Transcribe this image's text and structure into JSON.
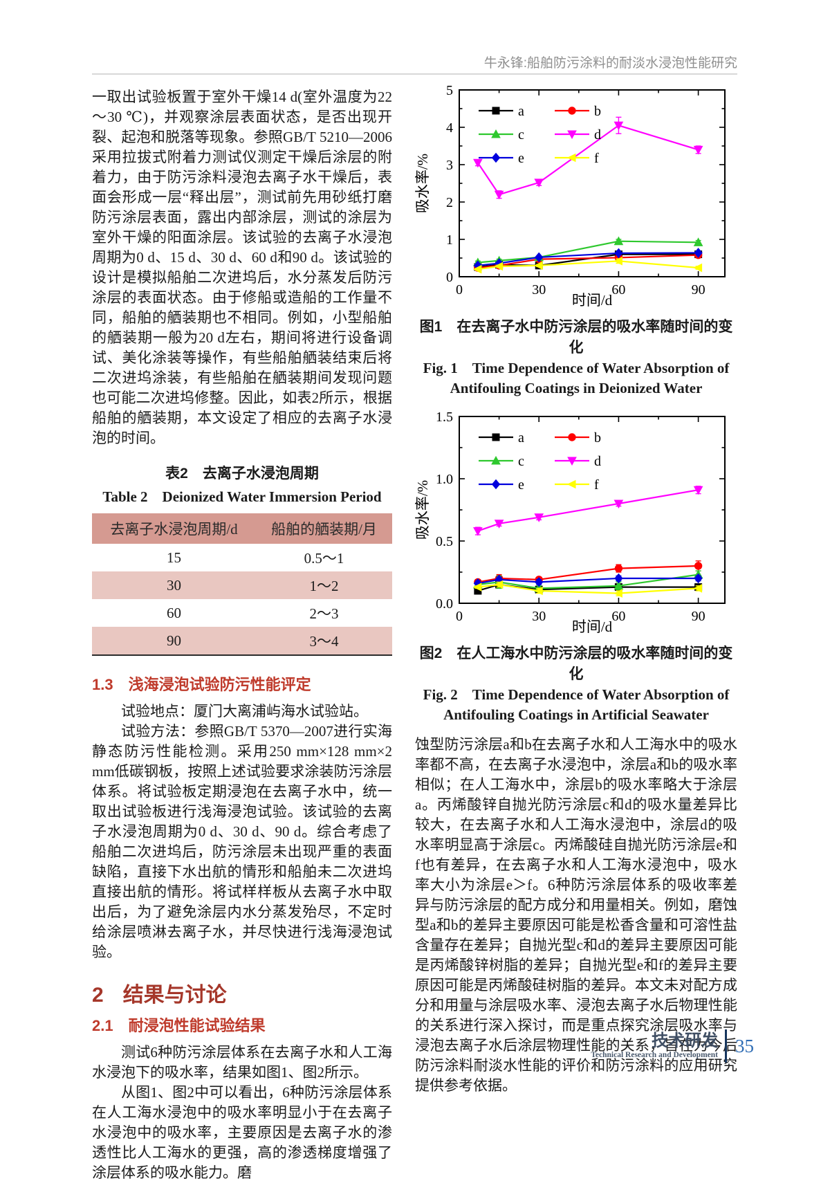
{
  "header": {
    "running_title": "牛永锋:船舶防污涂料的耐淡水浸泡性能研究"
  },
  "theme": {
    "heading_red": "#bf3a2b",
    "section_red": "#a5372a",
    "table_header_bg": "#d59a91",
    "table_alt_row_bg": "#e9c7c1",
    "footer_blue": "#2f6db5",
    "footer_slate": "#3f4e63"
  },
  "left_column": {
    "para1": "一取出试验板置于室外干燥14 d(室外温度为22～30 ℃)，并观察涂层表面状态，是否出现开裂、起泡和脱落等现象。参照GB/T 5210—2006采用拉拔式附着力测试仪测定干燥后涂层的附着力，由于防污涂料浸泡去离子水干燥后，表面会形成一层“释出层”，测试前先用砂纸打磨防污涂层表面，露出内部涂层，测试的涂层为室外干燥的阳面涂层。该试验的去离子水浸泡周期为0 d、15 d、30 d、60 d和90 d。该试验的设计是模拟船舶二次进坞后，水分蒸发后防污涂层的表面状态。由于修船或造船的工作量不同，船舶的舾装期也不相同。例如，小型船舶的舾装期一般为20 d左右，期间将进行设备调试、美化涂装等操作，有些船舶舾装结束后将二次进坞涂装，有些船舶在舾装期间发现问题也可能二次进坞修整。因此，如表2所示，根据船舶的舾装期，本文设定了相应的去离子水浸泡的时间。",
    "table": {
      "caption_cn": "表2　去离子水浸泡周期",
      "caption_en": "Table 2　Deionized Water Immersion Period",
      "headers": [
        "去离子水浸泡周期/d",
        "船舶的舾装期/月"
      ],
      "rows": [
        [
          "15",
          "0.5～1"
        ],
        [
          "30",
          "1～2"
        ],
        [
          "60",
          "2～3"
        ],
        [
          "90",
          "3～4"
        ]
      ]
    },
    "section_1_3": {
      "number": "1.3",
      "title": "浅海浸泡试验防污性能评定"
    },
    "para2": "试验地点：厦门大离浦屿海水试验站。",
    "para3": "试验方法：参照GB/T 5370—2007进行实海静态防污性能检测。采用250 mm×128 mm×2 mm低碳钢板，按照上述试验要求涂装防污涂层体系。将试验板定期浸泡在去离子水中，统一取出试验板进行浅海浸泡试验。该试验的去离子水浸泡周期为0 d、30 d、90 d。综合考虑了船舶二次进坞后，防污涂层未出现严重的表面缺陷，直接下水出航的情形和船舶未二次进坞直接出航的情形。将试样样板从去离子水中取出后，为了避免涂层内水分蒸发殆尽，不定时给涂层喷淋去离子水，并尽快进行浅海浸泡试验。",
    "section_2": {
      "number": "2",
      "title": "结果与讨论"
    },
    "section_2_1": {
      "number": "2.1",
      "title": "耐浸泡性能试验结果"
    },
    "para4": "测试6种防污涂层体系在去离子水和人工海水浸泡下的吸水率，结果如图1、图2所示。",
    "para5": "从图1、图2中可以看出，6种防污涂层体系在人工海水浸泡中的吸水率明显小于在去离子水浸泡中的吸水率，主要原因是去离子水的渗透性比人工海水的更强，高的渗透梯度增强了涂层体系的吸水能力。磨"
  },
  "right_column": {
    "fig1": {
      "caption_cn": "图1　在去离子水中防污涂层的吸水率随时间的变化",
      "caption_en_line1": "Fig. 1　Time Dependence of Water Absorption of",
      "caption_en_line2": "Antifouling Coatings in Deionized Water"
    },
    "fig2": {
      "caption_cn": "图2　在人工海水中防污涂层的吸水率随时间的变化",
      "caption_en_line1": "Fig. 2　Time Dependence of Water Absorption of",
      "caption_en_line2": "Antifouling Coatings in Artificial Seawater"
    },
    "para1": "蚀型防污涂层a和b在去离子水和人工海水中的吸水率都不高，在去离子水浸泡中，涂层a和b的吸水率相似；在人工海水中，涂层b的吸水率略大于涂层a。丙烯酸锌自抛光防污涂层c和d的吸水量差异比较大，在去离子水和人工海水浸泡中，涂层d的吸水率明显高于涂层c。丙烯酸硅自抛光防污涂层e和f也有差异，在去离子水和人工海水浸泡中，吸水率大小为涂层e＞f。6种防污涂层体系的吸收率差异与防污涂层的配方成分和用量相关。例如，磨蚀型a和b的差异主要原因可能是松香含量和可溶性盐含量存在差异；自抛光型c和d的差异主要原因可能是丙烯酸锌树脂的差异；自抛光型e和f的差异主要原因可能是丙烯酸硅树脂的差异。本文未对配方成分和用量与涂层吸水率、浸泡去离子水后物理性能的关系进行深入探讨，而是重点探究涂层吸水率与浸泡去离子水后涂层物理性能的关系，旨在为今后防污涂料耐淡水性能的评价和防污涂料的应用研究提供参考依据。"
  },
  "footer": {
    "section_cn": "技术研发",
    "section_en": "Technical Research and Development",
    "page_number": "35"
  },
  "chart_data": [
    {
      "type": "line",
      "title": "在去离子水中防污涂层的吸水率随时间的变化",
      "xlabel": "时间/d",
      "ylabel": "吸水率/%",
      "xlim": [
        0,
        100
      ],
      "ylim": [
        0,
        5
      ],
      "xticks": [
        0,
        30,
        60,
        90
      ],
      "xtick_labels": [
        "0",
        "30",
        "60",
        "90"
      ],
      "xminor": [
        15,
        45,
        75
      ],
      "yticks": [
        0,
        1,
        2,
        3,
        4,
        5
      ],
      "ytick_labels": [
        "0",
        "1",
        "2",
        "3",
        "4",
        "5"
      ],
      "yminor": [
        0.5,
        1.5,
        2.5,
        3.5,
        4.5
      ],
      "grid": false,
      "legend_position": "top-left",
      "x": [
        7,
        15,
        30,
        60,
        90
      ],
      "series": [
        {
          "name": "a",
          "color": "#000000",
          "marker": "square",
          "values": [
            0.26,
            0.32,
            0.3,
            0.6,
            0.6
          ],
          "err": [
            0.02,
            0.02,
            0.02,
            0.03,
            0.03
          ]
        },
        {
          "name": "b",
          "color": "#ff0000",
          "marker": "circle",
          "values": [
            0.24,
            0.3,
            0.47,
            0.51,
            0.58
          ],
          "err": [
            0.02,
            0.02,
            0.03,
            0.05,
            0.04
          ]
        },
        {
          "name": "c",
          "color": "#2ec82e",
          "marker": "triangle-up",
          "values": [
            0.38,
            0.43,
            0.52,
            0.95,
            0.92
          ],
          "err": [
            0.04,
            0.04,
            0.03,
            0.05,
            0.05
          ]
        },
        {
          "name": "d",
          "color": "#ff00ff",
          "marker": "triangle-down",
          "values": [
            3.05,
            2.2,
            2.52,
            4.05,
            3.4
          ],
          "err": [
            0.08,
            0.1,
            0.08,
            0.22,
            0.1
          ]
        },
        {
          "name": "e",
          "color": "#0000dd",
          "marker": "diamond",
          "values": [
            0.3,
            0.36,
            0.52,
            0.63,
            0.64
          ],
          "err": [
            0.02,
            0.03,
            0.03,
            0.03,
            0.03
          ]
        },
        {
          "name": "f",
          "color": "#ffff00",
          "marker": "triangle-left",
          "values": [
            0.2,
            0.28,
            0.3,
            0.42,
            0.24
          ],
          "err": [
            0.02,
            0.03,
            0.03,
            0.06,
            0.04
          ]
        }
      ]
    },
    {
      "type": "line",
      "title": "在人工海水中防污涂层的吸水率随时间的变化",
      "xlabel": "时间/d",
      "ylabel": "吸水率/%",
      "xlim": [
        0,
        100
      ],
      "ylim": [
        0,
        1.5
      ],
      "xticks": [
        0,
        30,
        60,
        90
      ],
      "xtick_labels": [
        "0",
        "30",
        "60",
        "90"
      ],
      "xminor": [
        15,
        45,
        75
      ],
      "yticks": [
        0,
        0.5,
        1.0,
        1.5
      ],
      "ytick_labels": [
        "0.0",
        "0.5",
        "1.0",
        "1.5"
      ],
      "yminor": [
        0.25,
        0.75,
        1.25
      ],
      "grid": false,
      "legend_position": "top-left",
      "x": [
        7,
        15,
        30,
        60,
        90
      ],
      "series": [
        {
          "name": "a",
          "color": "#000000",
          "marker": "square",
          "values": [
            0.1,
            0.15,
            0.11,
            0.13,
            0.13
          ],
          "err": [
            0.01,
            0.02,
            0.02,
            0.02,
            0.02
          ]
        },
        {
          "name": "b",
          "color": "#ff0000",
          "marker": "circle",
          "values": [
            0.17,
            0.2,
            0.19,
            0.28,
            0.3
          ],
          "err": [
            0.02,
            0.03,
            0.02,
            0.03,
            0.04
          ]
        },
        {
          "name": "c",
          "color": "#2ec82e",
          "marker": "triangle-up",
          "values": [
            0.15,
            0.17,
            0.12,
            0.14,
            0.23
          ],
          "err": [
            0.02,
            0.05,
            0.02,
            0.03,
            0.03
          ]
        },
        {
          "name": "d",
          "color": "#ff00ff",
          "marker": "triangle-down",
          "values": [
            0.58,
            0.64,
            0.69,
            0.8,
            0.91
          ],
          "err": [
            0.03,
            0.02,
            0.02,
            0.02,
            0.03
          ]
        },
        {
          "name": "e",
          "color": "#0000dd",
          "marker": "diamond",
          "values": [
            0.16,
            0.19,
            0.17,
            0.2,
            0.2
          ],
          "err": [
            0.02,
            0.02,
            0.02,
            0.02,
            0.02
          ]
        },
        {
          "name": "f",
          "color": "#ffff00",
          "marker": "triangle-left",
          "values": [
            0.13,
            0.15,
            0.1,
            0.08,
            0.12
          ],
          "err": [
            0.01,
            0.02,
            0.02,
            0.02,
            0.02
          ]
        }
      ]
    }
  ]
}
